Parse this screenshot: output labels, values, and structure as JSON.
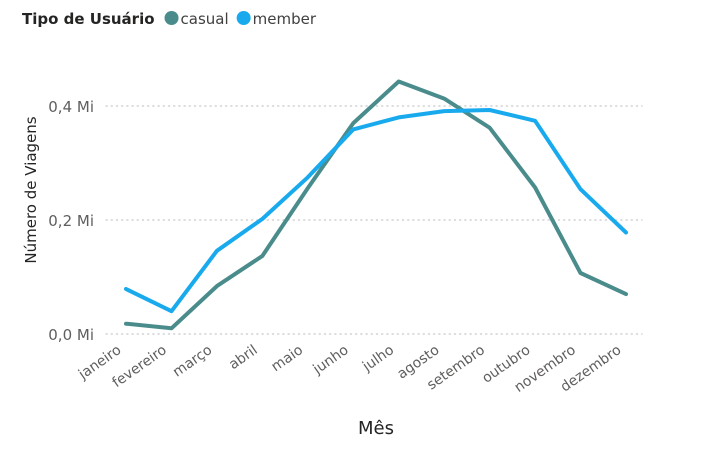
{
  "chart_data": {
    "type": "line",
    "legend": {
      "title": "Tipo de Usuário",
      "placement": "top-left"
    },
    "categories": [
      "janeiro",
      "fevereiro",
      "março",
      "abril",
      "maio",
      "junho",
      "julho",
      "agosto",
      "setembro",
      "outubro",
      "novembro",
      "dezembro"
    ],
    "series": [
      {
        "name": "casual",
        "color": "#4a8c8c",
        "values": [
          0.018,
          0.01,
          0.084,
          0.137,
          0.256,
          0.37,
          0.443,
          0.413,
          0.362,
          0.257,
          0.107,
          0.07
        ]
      },
      {
        "name": "member",
        "color": "#19aaee",
        "values": [
          0.079,
          0.04,
          0.146,
          0.202,
          0.275,
          0.359,
          0.38,
          0.391,
          0.393,
          0.374,
          0.254,
          0.178
        ]
      }
    ],
    "yticks": [
      {
        "value": 0.0,
        "label": "0,0 Mi"
      },
      {
        "value": 0.2,
        "label": "0,2 Mi"
      },
      {
        "value": 0.4,
        "label": "0,4 Mi"
      }
    ],
    "ylim": [
      0,
      0.48
    ],
    "xlabel": "Mês",
    "ylabel": "Número de Viagens",
    "grid": "horizontal-dotted"
  }
}
